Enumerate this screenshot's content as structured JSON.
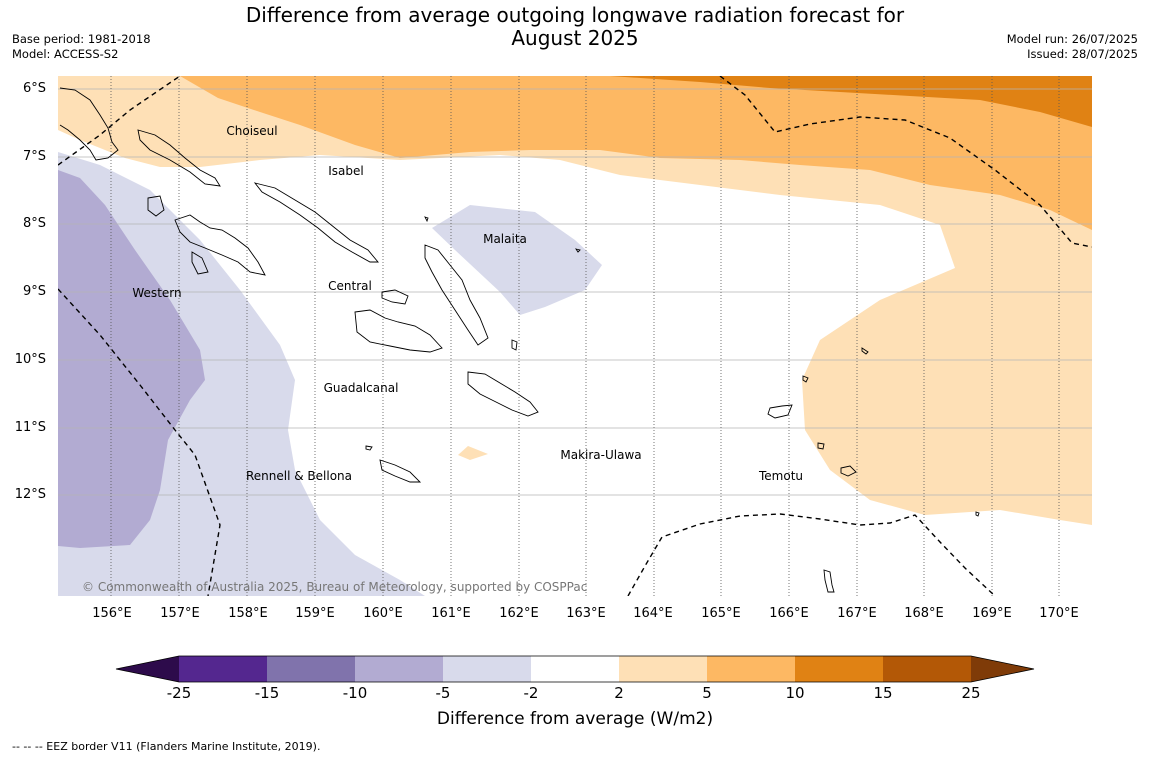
{
  "header": {
    "title_line1": "Difference from average outgoing longwave radiation forecast for",
    "title_line2": "August 2025",
    "base_period": "Base period: 1981-2018",
    "model": "Model: ACCESS-S2",
    "model_run": "Model run: 26/07/2025",
    "issued": "Issued: 28/07/2025"
  },
  "map": {
    "lat_labels": [
      "6°S",
      "7°S",
      "8°S",
      "9°S",
      "10°S",
      "11°S",
      "12°S"
    ],
    "lon_labels": [
      "156°E",
      "157°E",
      "158°E",
      "159°E",
      "160°E",
      "161°E",
      "162°E",
      "163°E",
      "164°E",
      "165°E",
      "166°E",
      "167°E",
      "168°E",
      "169°E",
      "170°E"
    ],
    "regions": {
      "choiseul": "Choiseul",
      "isabel": "Isabel",
      "malaita": "Malaita",
      "western": "Western",
      "central": "Central",
      "guadalcanal": "Guadalcanal",
      "makira": "Makira-Ulawa",
      "rennell": "Rennell & Bellona",
      "temotu": "Temotu"
    },
    "copyright": "© Commonwealth of Australia 2025, Bureau of Meteorology, supported by COSPPac"
  },
  "colorbar": {
    "labels": [
      "-25",
      "-15",
      "-10",
      "-5",
      "-2",
      "2",
      "5",
      "10",
      "15",
      "25"
    ],
    "colors": [
      "#2d0b4b",
      "#54278f",
      "#8073ac",
      "#b2abd2",
      "#d8daeb",
      "#ffffff",
      "#fee0b6",
      "#fdb863",
      "#e08214",
      "#b35806",
      "#7f3b08"
    ],
    "title": "Difference from average (W/m2)"
  },
  "footnote": "--  --  -- EEZ border V11 (Flanders Marine Institute, 2019)."
}
